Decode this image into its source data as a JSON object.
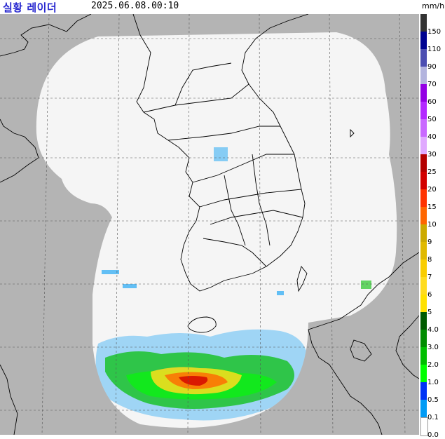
{
  "header": {
    "title": "실황 레이더",
    "timestamp": "2025.06.08.00:10",
    "unit": "mm/h"
  },
  "colors": {
    "sea": "#b4b4b4",
    "coverage": "#f5f5f5",
    "border": "#000000",
    "grid": "#555555"
  },
  "legend": [
    {
      "label": "150",
      "color": "#333333"
    },
    {
      "label": "110",
      "color": "#000390"
    },
    {
      "label": "90",
      "color": "#4c4eb1"
    },
    {
      "label": "70",
      "color": "#b3b4de"
    },
    {
      "label": "60",
      "color": "#9300e4"
    },
    {
      "label": "50",
      "color": "#b329ff"
    },
    {
      "label": "40",
      "color": "#c969ff"
    },
    {
      "label": "30",
      "color": "#e0a9ff"
    },
    {
      "label": "25",
      "color": "#b40000"
    },
    {
      "label": "20",
      "color": "#d20000"
    },
    {
      "label": "15",
      "color": "#ff3300"
    },
    {
      "label": "10",
      "color": "#ff6600"
    },
    {
      "label": "9",
      "color": "#ccaa00"
    },
    {
      "label": "8",
      "color": "#e0b900"
    },
    {
      "label": "7",
      "color": "#f9cd00"
    },
    {
      "label": "6",
      "color": "#ffdc1f"
    },
    {
      "label": "5",
      "color": "#ffe100"
    },
    {
      "label": "4.0",
      "color": "#005a00"
    },
    {
      "label": "3.0",
      "color": "#008c00"
    },
    {
      "label": "2.0",
      "color": "#00be00"
    },
    {
      "label": "1.0",
      "color": "#00ff00"
    },
    {
      "label": "0.5",
      "color": "#0033f5"
    },
    {
      "label": "0.1",
      "color": "#009bf5"
    },
    {
      "label": "0.0",
      "color": "#ffffff"
    }
  ]
}
